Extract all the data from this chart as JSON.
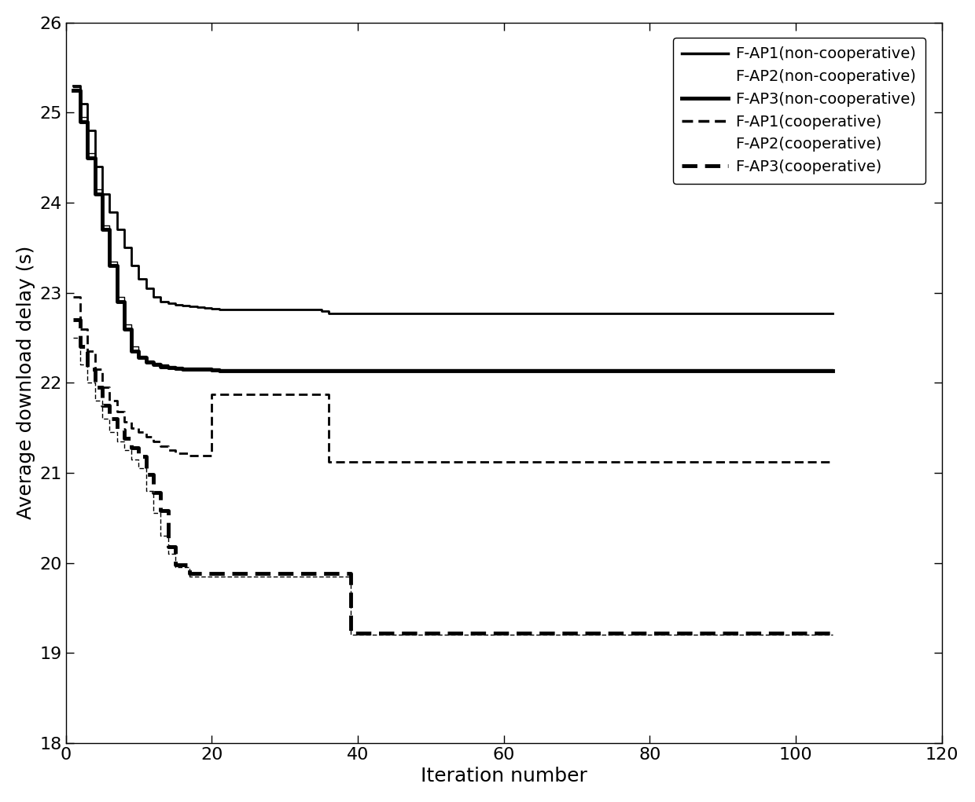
{
  "xlabel": "Iteration number",
  "ylabel": "Average download delay (s)",
  "xlim": [
    0,
    120
  ],
  "ylim": [
    18,
    26
  ],
  "yticks": [
    18,
    19,
    20,
    21,
    22,
    23,
    24,
    25,
    26
  ],
  "xticks": [
    0,
    20,
    40,
    60,
    80,
    100,
    120
  ],
  "background_color": "#ffffff",
  "legend_labels": [
    "F-AP1(non-cooperative)",
    "F-AP2(non-cooperative)",
    "F-AP3(non-cooperative)",
    "F-AP1(cooperative)",
    "F-AP2(cooperative)",
    "F-AP3(cooperative)"
  ],
  "fap1_nc": {
    "x": [
      1,
      2,
      3,
      4,
      5,
      6,
      7,
      8,
      9,
      10,
      11,
      12,
      13,
      14,
      15,
      16,
      17,
      18,
      19,
      20,
      21,
      35,
      36,
      105
    ],
    "y": [
      25.3,
      25.1,
      24.8,
      24.4,
      24.1,
      23.9,
      23.7,
      23.5,
      23.3,
      23.15,
      23.05,
      22.95,
      22.9,
      22.88,
      22.87,
      22.86,
      22.85,
      22.84,
      22.83,
      22.82,
      22.81,
      22.8,
      22.77,
      22.77
    ],
    "lw": 2.0,
    "ls": "solid"
  },
  "fap2_nc": {
    "x": [
      1,
      2,
      3,
      4,
      5,
      6,
      7,
      8,
      9,
      10,
      11,
      12,
      13,
      14,
      15,
      16,
      20,
      21,
      105
    ],
    "y": [
      25.28,
      24.95,
      24.55,
      24.15,
      23.75,
      23.35,
      22.95,
      22.65,
      22.4,
      22.3,
      22.25,
      22.22,
      22.2,
      22.19,
      22.18,
      22.17,
      22.16,
      22.15,
      22.15
    ],
    "lw": 1.0,
    "ls": "solid"
  },
  "fap3_nc": {
    "x": [
      1,
      2,
      3,
      4,
      5,
      6,
      7,
      8,
      9,
      10,
      11,
      12,
      13,
      14,
      15,
      16,
      20,
      21,
      105
    ],
    "y": [
      25.25,
      24.9,
      24.5,
      24.1,
      23.7,
      23.3,
      22.9,
      22.6,
      22.35,
      22.28,
      22.23,
      22.2,
      22.18,
      22.17,
      22.16,
      22.15,
      22.14,
      22.13,
      22.13
    ],
    "lw": 3.5,
    "ls": "solid"
  },
  "fap1_coop": {
    "x": [
      1,
      2,
      3,
      4,
      5,
      6,
      7,
      8,
      9,
      10,
      11,
      12,
      13,
      14,
      15,
      17,
      20,
      35,
      36,
      55,
      56,
      105
    ],
    "y": [
      22.95,
      22.6,
      22.35,
      22.15,
      21.95,
      21.8,
      21.68,
      21.57,
      21.5,
      21.45,
      21.4,
      21.35,
      21.3,
      21.25,
      21.22,
      21.19,
      21.87,
      21.87,
      21.12,
      21.12,
      21.12,
      21.12
    ],
    "lw": 2.0,
    "ls": "dashed"
  },
  "fap2_coop": {
    "x": [
      1,
      2,
      3,
      4,
      5,
      6,
      7,
      8,
      9,
      10,
      11,
      12,
      13,
      14,
      15,
      17,
      20,
      21,
      35,
      36,
      38,
      39,
      105
    ],
    "y": [
      22.5,
      22.2,
      22.0,
      21.8,
      21.6,
      21.45,
      21.35,
      21.25,
      21.15,
      21.05,
      20.8,
      20.55,
      20.3,
      20.1,
      19.95,
      19.85,
      19.85,
      19.85,
      19.85,
      19.85,
      19.85,
      19.2,
      19.2
    ],
    "lw": 1.0,
    "ls": "dashed"
  },
  "fap3_coop": {
    "x": [
      1,
      2,
      3,
      4,
      5,
      6,
      7,
      8,
      9,
      10,
      11,
      12,
      13,
      14,
      15,
      17,
      20,
      21,
      35,
      36,
      38,
      39,
      105
    ],
    "y": [
      22.7,
      22.4,
      22.15,
      21.95,
      21.75,
      21.6,
      21.48,
      21.38,
      21.28,
      21.18,
      20.98,
      20.78,
      20.58,
      20.18,
      19.98,
      19.88,
      19.88,
      19.88,
      19.88,
      19.88,
      19.88,
      19.22,
      19.22
    ],
    "lw": 3.5,
    "ls": "dashed"
  }
}
